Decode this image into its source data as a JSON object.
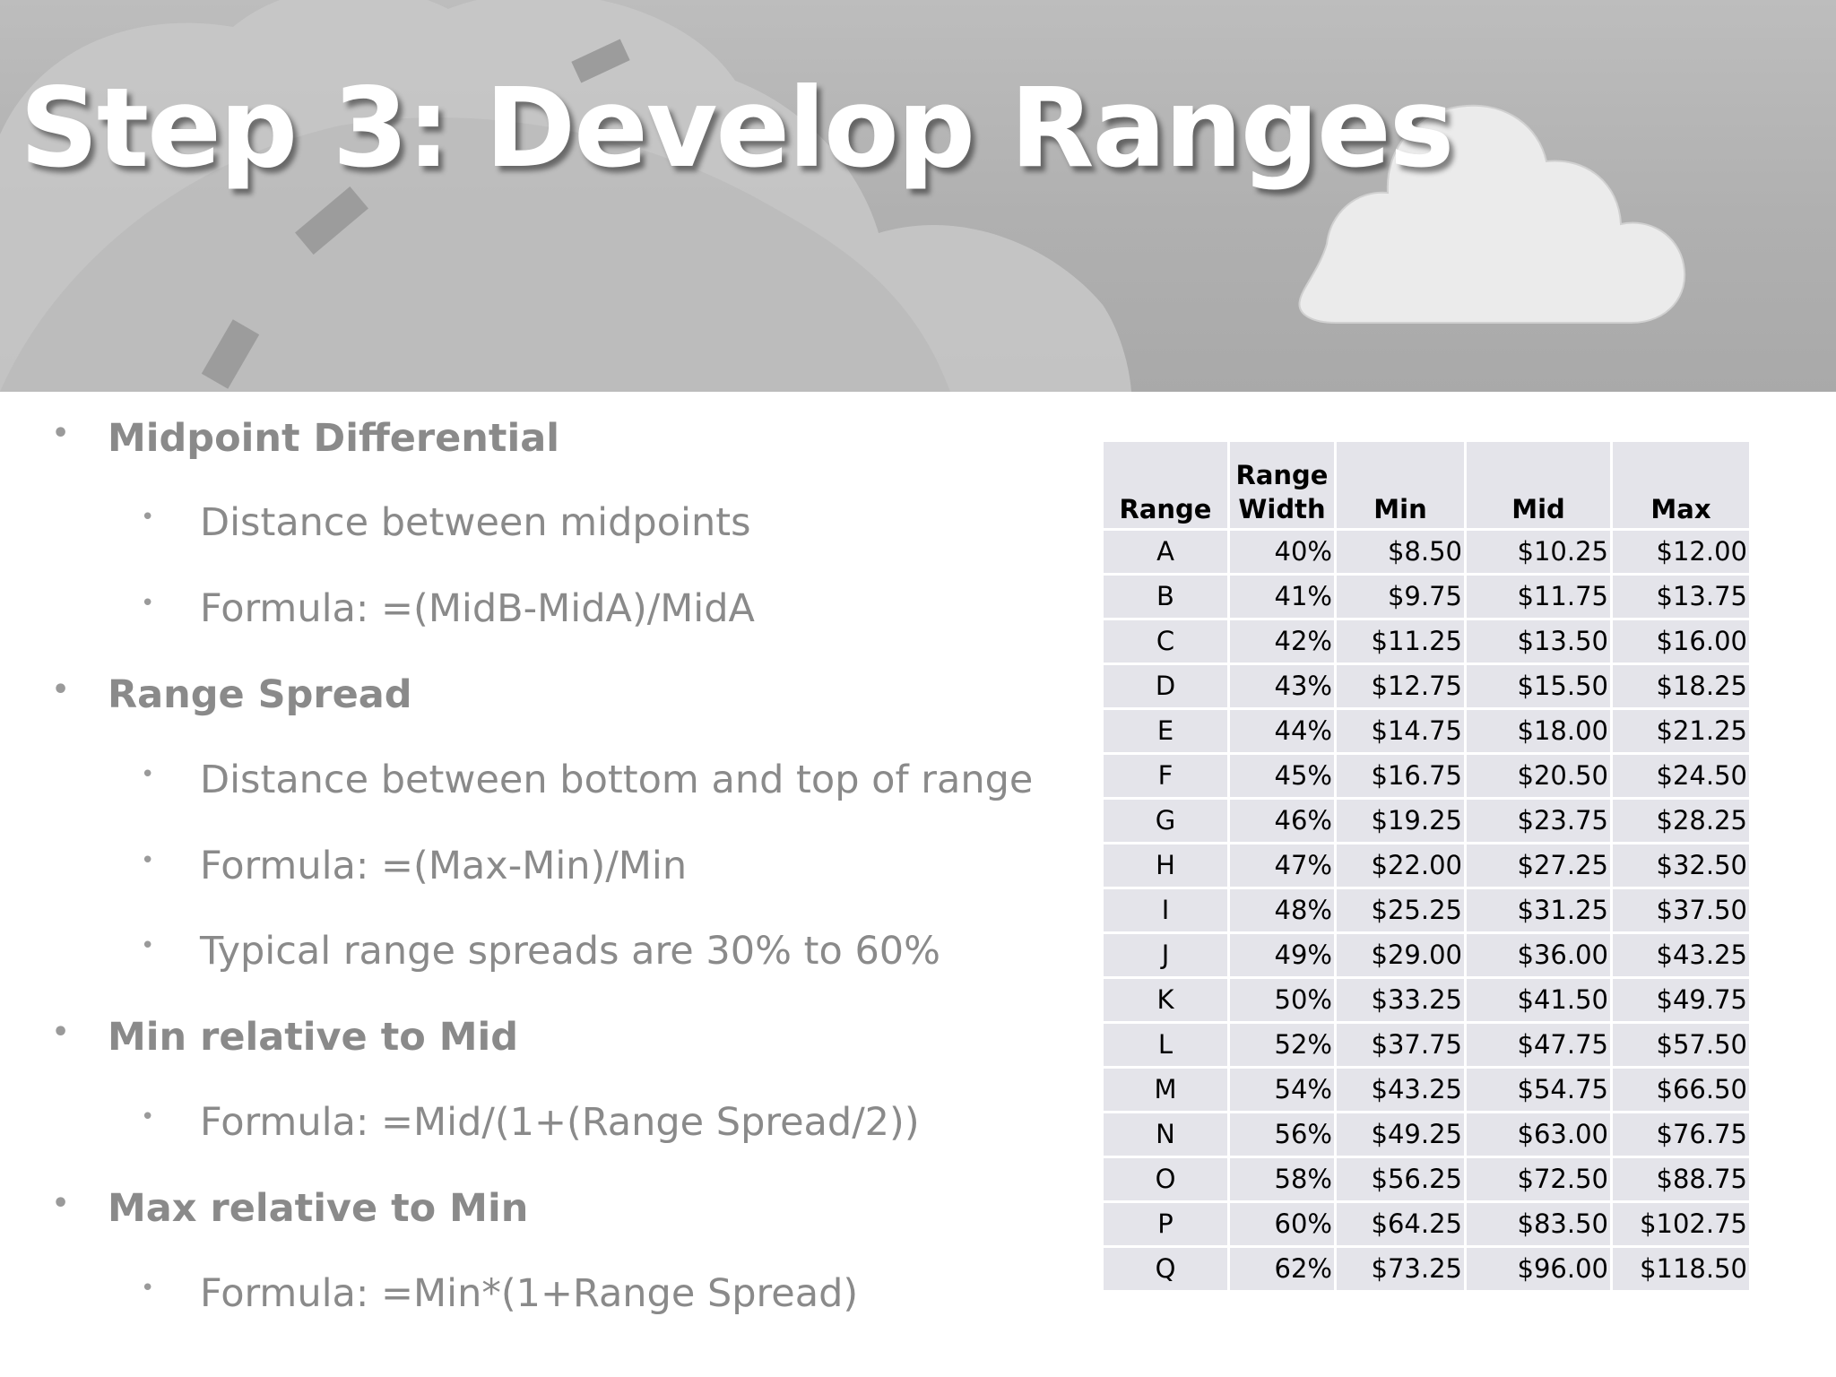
{
  "title": "Step 3: Develop Ranges",
  "bullets": [
    {
      "level": 1,
      "text": "Midpoint Differential"
    },
    {
      "level": 2,
      "text": "Distance between midpoints"
    },
    {
      "level": 2,
      "text": "Formula:  =(MidB-MidA)/MidA"
    },
    {
      "level": 1,
      "text": "Range Spread"
    },
    {
      "level": 2,
      "text": "Distance between bottom and top of range"
    },
    {
      "level": 2,
      "text": "Formula:  =(Max-Min)/Min"
    },
    {
      "level": 2,
      "text": "Typical range spreads are 30% to 60%"
    },
    {
      "level": 1,
      "text": "Min relative to Mid"
    },
    {
      "level": 2,
      "text": "Formula:  =Mid/(1+(Range Spread/2))"
    },
    {
      "level": 1,
      "text": "Max relative to Min"
    },
    {
      "level": 2,
      "text": "Formula:  =Min*(1+Range Spread)"
    }
  ],
  "table": {
    "headers": {
      "range": "Range",
      "width_line1": "Range",
      "width_line2": "Width",
      "min": "Min",
      "mid": "Mid",
      "max": "Max"
    },
    "rows": [
      [
        "A",
        "40%",
        "$8.50",
        "$10.25",
        "$12.00"
      ],
      [
        "B",
        "41%",
        "$9.75",
        "$11.75",
        "$13.75"
      ],
      [
        "C",
        "42%",
        "$11.25",
        "$13.50",
        "$16.00"
      ],
      [
        "D",
        "43%",
        "$12.75",
        "$15.50",
        "$18.25"
      ],
      [
        "E",
        "44%",
        "$14.75",
        "$18.00",
        "$21.25"
      ],
      [
        "F",
        "45%",
        "$16.75",
        "$20.50",
        "$24.50"
      ],
      [
        "G",
        "46%",
        "$19.25",
        "$23.75",
        "$28.25"
      ],
      [
        "H",
        "47%",
        "$22.00",
        "$27.25",
        "$32.50"
      ],
      [
        "I",
        "48%",
        "$25.25",
        "$31.25",
        "$37.50"
      ],
      [
        "J",
        "49%",
        "$29.00",
        "$36.00",
        "$43.25"
      ],
      [
        "K",
        "50%",
        "$33.25",
        "$41.50",
        "$49.75"
      ],
      [
        "L",
        "52%",
        "$37.75",
        "$47.75",
        "$57.50"
      ],
      [
        "M",
        "54%",
        "$43.25",
        "$54.75",
        "$66.50"
      ],
      [
        "N",
        "56%",
        "$49.25",
        "$63.00",
        "$76.75"
      ],
      [
        "O",
        "58%",
        "$56.25",
        "$72.50",
        "$88.75"
      ],
      [
        "P",
        "60%",
        "$64.25",
        "$83.50",
        "$102.75"
      ],
      [
        "Q",
        "62%",
        "$73.25",
        "$96.00",
        "$118.50"
      ]
    ]
  },
  "icons": {
    "banner_decoration": "cloud-road-illustration",
    "cloud": "cloud-icon",
    "bullet": "bullet-dot"
  },
  "colors": {
    "banner": "#b0b0b0",
    "bullet_text": "#8a8a8a",
    "table_cell": "#e4e4ea",
    "title": "#ffffff"
  }
}
